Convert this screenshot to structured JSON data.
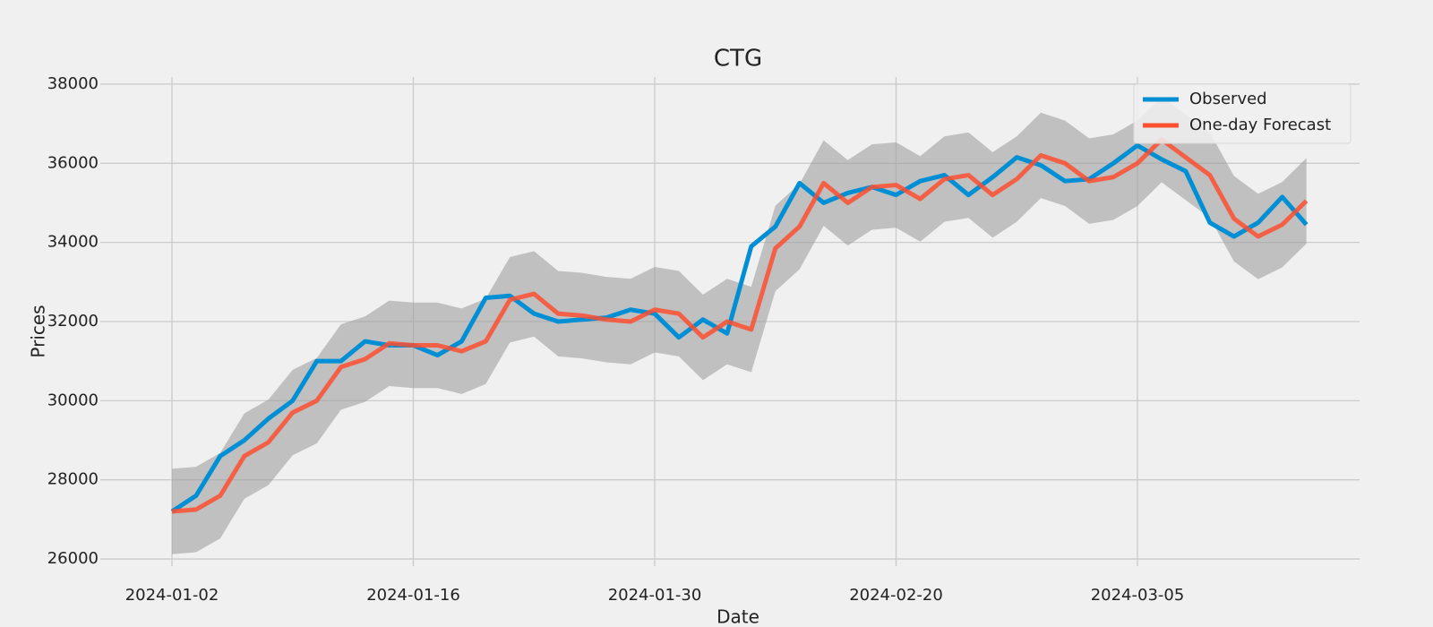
{
  "chart_data": {
    "type": "line",
    "title": "CTG",
    "xlabel": "Date",
    "ylabel": "Prices",
    "categories": [
      "2024-01-02",
      null,
      null,
      null,
      null,
      null,
      null,
      null,
      null,
      null,
      "2024-01-16",
      null,
      null,
      null,
      null,
      null,
      null,
      null,
      null,
      null,
      "2024-01-30",
      null,
      null,
      null,
      null,
      null,
      null,
      null,
      null,
      null,
      "2024-02-20",
      null,
      null,
      null,
      null,
      null,
      null,
      null,
      null,
      null,
      "2024-03-05",
      null,
      null,
      null,
      null,
      null,
      null,
      null
    ],
    "series": [
      {
        "name": "Observed",
        "color": "#008fd5",
        "values": [
          27200,
          27600,
          28600,
          29000,
          29550,
          30000,
          31000,
          31000,
          31500,
          31400,
          31400,
          31150,
          31500,
          32600,
          32650,
          32200,
          32000,
          32050,
          32100,
          32300,
          32200,
          31600,
          32050,
          31700,
          33900,
          34400,
          35500,
          35000,
          35250,
          35400,
          35200,
          35550,
          35700,
          35200,
          35650,
          36150,
          35950,
          35550,
          35600,
          36000,
          36450,
          36100,
          35800,
          34500,
          34150,
          34500,
          35150,
          34450
        ]
      },
      {
        "name": "One-day Forecast",
        "color": "#fc4f30",
        "values": [
          27200,
          27250,
          27600,
          28600,
          28950,
          29700,
          30000,
          30850,
          31050,
          31450,
          31400,
          31400,
          31250,
          31500,
          32550,
          32700,
          32200,
          32150,
          32050,
          32000,
          32300,
          32200,
          31600,
          32000,
          31800,
          33850,
          34400,
          35500,
          35000,
          35400,
          35450,
          35100,
          35600,
          35700,
          35200,
          35600,
          36200,
          36000,
          35550,
          35650,
          36000,
          36600,
          36150,
          35700,
          34600,
          34150,
          34450,
          35050
        ]
      }
    ],
    "band": {
      "color": "#a0a0a0",
      "lower": [
        26120,
        26170,
        26520,
        27520,
        27870,
        28620,
        28920,
        29770,
        29970,
        30370,
        30320,
        30320,
        30170,
        30420,
        31470,
        31620,
        31120,
        31070,
        30970,
        30920,
        31220,
        31120,
        30520,
        30920,
        30720,
        32770,
        33320,
        34420,
        33920,
        34320,
        34370,
        34020,
        34520,
        34620,
        34120,
        34520,
        35120,
        34920,
        34470,
        34570,
        34920,
        35520,
        35070,
        34620,
        33520,
        33070,
        33370,
        33970
      ],
      "upper": [
        28280,
        28330,
        28680,
        29680,
        30030,
        30780,
        31080,
        31930,
        32130,
        32530,
        32480,
        32480,
        32330,
        32580,
        33630,
        33780,
        33280,
        33230,
        33130,
        33080,
        33380,
        33280,
        32680,
        33080,
        32880,
        34930,
        35480,
        36580,
        36080,
        36480,
        36530,
        36180,
        36680,
        36780,
        36280,
        36680,
        37280,
        37080,
        36630,
        36730,
        37080,
        37680,
        37230,
        36780,
        35680,
        35230,
        35530,
        36130
      ]
    },
    "ylim": [
      25820,
      38180
    ],
    "yticks": [
      26000,
      28000,
      30000,
      32000,
      34000,
      36000,
      38000
    ],
    "grid": true,
    "legend": "upper right"
  }
}
